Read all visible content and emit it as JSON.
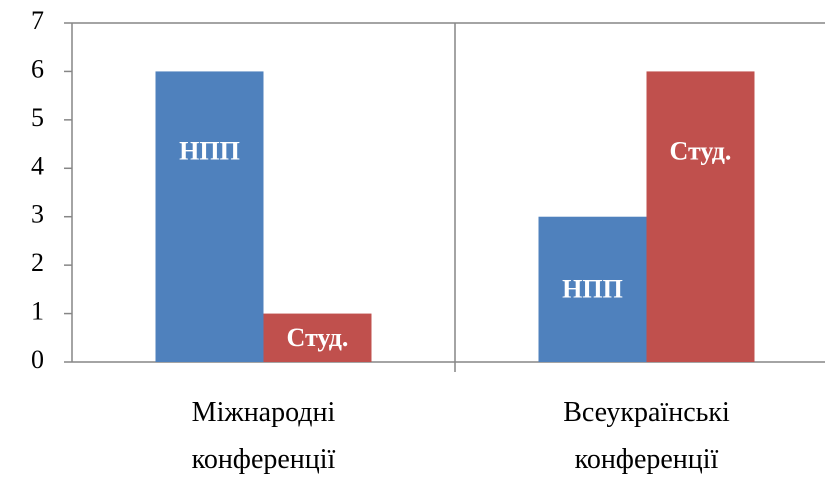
{
  "chart_data": {
    "type": "bar",
    "categories": [
      "Міжнародні конференції",
      "Всеукраїнські конференції"
    ],
    "series": [
      {
        "name": "НПП",
        "color": "#4f81bd",
        "values": [
          6,
          3
        ]
      },
      {
        "name": "Студ.",
        "color": "#c0504d",
        "values": [
          1,
          6
        ]
      }
    ],
    "ylim": [
      0,
      7
    ],
    "yticks": [
      0,
      1,
      2,
      3,
      4,
      5,
      6,
      7
    ],
    "grid": false
  }
}
